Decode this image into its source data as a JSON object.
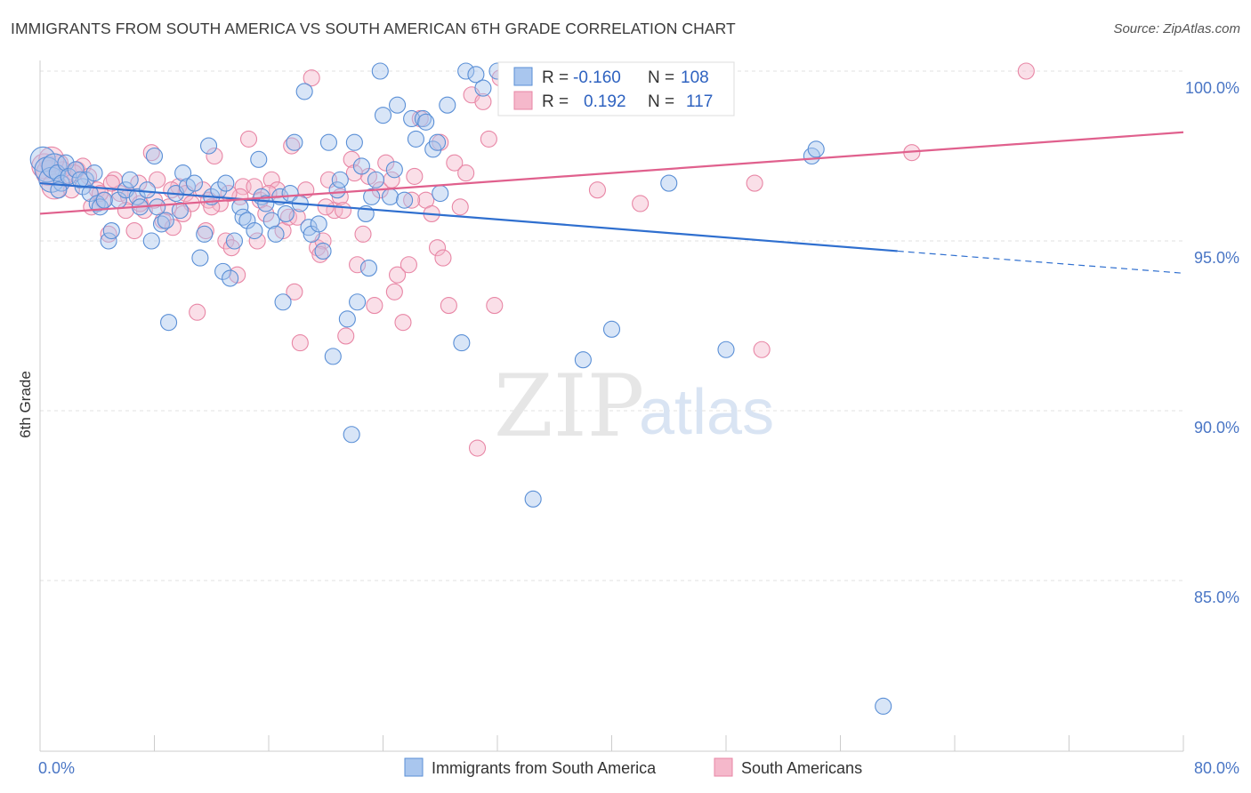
{
  "title": "IMMIGRANTS FROM SOUTH AMERICA VS SOUTH AMERICAN 6TH GRADE CORRELATION CHART",
  "source": "Source: ZipAtlas.com",
  "watermark": {
    "zip": "ZIP",
    "atlas": "atlas"
  },
  "colors": {
    "blue_fill": "#a9c6ee",
    "blue_stroke": "#5a8fd6",
    "blue_line": "#2f6fcf",
    "pink_fill": "#f5b8cb",
    "pink_stroke": "#e886a5",
    "pink_line": "#e0608d",
    "tick_label": "#4a76c5",
    "grid": "#e2e2e2"
  },
  "legend": {
    "rows": [
      {
        "r_label": "R =",
        "r_value": "-0.160",
        "n_label": "N =",
        "n_value": "108"
      },
      {
        "r_label": "R =",
        "r_value": "0.192",
        "n_label": "N =",
        "n_value": "117"
      }
    ]
  },
  "chart_data": {
    "type": "scatter",
    "title": "IMMIGRANTS FROM SOUTH AMERICA VS SOUTH AMERICAN 6TH GRADE CORRELATION CHART",
    "xlabel": "",
    "ylabel": "6th Grade",
    "xlim": [
      0,
      80
    ],
    "ylim": [
      80.5,
      100.8
    ],
    "x_tick_labels": [
      {
        "value": 0,
        "label": "0.0%"
      },
      {
        "value": 80,
        "label": "80.0%"
      }
    ],
    "y_tick_labels": [
      {
        "value": 100,
        "label": "100.0%"
      },
      {
        "value": 95,
        "label": "95.0%"
      },
      {
        "value": 90,
        "label": "90.0%"
      },
      {
        "value": 85,
        "label": "85.0%"
      }
    ],
    "legend_position": "top-center",
    "grid": true,
    "series": [
      {
        "name": "Immigrants from South America",
        "color": "#a9c6ee",
        "trend": {
          "x0": 0,
          "y0": 96.7,
          "x1": 60,
          "y1": 94.7,
          "dashed_to_x": 80,
          "dashed_to_y": 94.05
        },
        "points": [
          [
            0.2,
            97.4
          ],
          [
            0.5,
            97.1
          ],
          [
            0.8,
            96.8
          ],
          [
            1.0,
            97.2
          ],
          [
            1.2,
            97.0
          ],
          [
            1.5,
            96.7
          ],
          [
            1.8,
            97.3
          ],
          [
            2.0,
            96.9
          ],
          [
            2.5,
            97.1
          ],
          [
            3.0,
            96.6
          ],
          [
            3.2,
            96.8
          ],
          [
            3.5,
            96.4
          ],
          [
            4.0,
            96.1
          ],
          [
            4.2,
            96.0
          ],
          [
            4.8,
            95.0
          ],
          [
            5.0,
            95.3
          ],
          [
            5.5,
            96.2
          ],
          [
            6.0,
            96.5
          ],
          [
            6.3,
            96.8
          ],
          [
            6.8,
            96.3
          ],
          [
            7.0,
            96.0
          ],
          [
            7.5,
            96.5
          ],
          [
            7.8,
            95.0
          ],
          [
            8.0,
            97.5
          ],
          [
            8.5,
            95.5
          ],
          [
            8.8,
            95.6
          ],
          [
            9.0,
            92.6
          ],
          [
            9.5,
            96.4
          ],
          [
            9.8,
            95.9
          ],
          [
            10.0,
            97.0
          ],
          [
            10.3,
            96.6
          ],
          [
            10.8,
            96.7
          ],
          [
            11.2,
            94.5
          ],
          [
            11.5,
            95.2
          ],
          [
            11.8,
            97.8
          ],
          [
            12.0,
            96.3
          ],
          [
            12.5,
            96.5
          ],
          [
            12.8,
            94.1
          ],
          [
            13.0,
            96.7
          ],
          [
            13.3,
            93.9
          ],
          [
            13.6,
            95.0
          ],
          [
            14.0,
            96.0
          ],
          [
            14.2,
            95.7
          ],
          [
            14.5,
            95.6
          ],
          [
            15.0,
            95.3
          ],
          [
            15.3,
            97.4
          ],
          [
            15.5,
            96.3
          ],
          [
            15.8,
            96.1
          ],
          [
            16.2,
            95.6
          ],
          [
            16.5,
            95.2
          ],
          [
            16.8,
            96.3
          ],
          [
            17.0,
            93.2
          ],
          [
            17.5,
            96.4
          ],
          [
            17.8,
            97.9
          ],
          [
            18.2,
            96.1
          ],
          [
            18.5,
            99.4
          ],
          [
            18.8,
            95.4
          ],
          [
            19.0,
            95.2
          ],
          [
            19.5,
            95.5
          ],
          [
            19.8,
            94.7
          ],
          [
            20.2,
            97.9
          ],
          [
            20.5,
            91.6
          ],
          [
            20.8,
            96.5
          ],
          [
            21.0,
            96.8
          ],
          [
            21.5,
            92.7
          ],
          [
            21.8,
            89.3
          ],
          [
            22.0,
            97.9
          ],
          [
            22.2,
            93.2
          ],
          [
            22.5,
            97.2
          ],
          [
            22.8,
            95.8
          ],
          [
            23.0,
            94.2
          ],
          [
            23.2,
            96.3
          ],
          [
            23.5,
            96.8
          ],
          [
            23.8,
            100.0
          ],
          [
            24.0,
            98.7
          ],
          [
            24.5,
            96.3
          ],
          [
            24.8,
            97.1
          ],
          [
            25.0,
            99.0
          ],
          [
            25.5,
            96.2
          ],
          [
            26.0,
            98.6
          ],
          [
            26.3,
            98.0
          ],
          [
            26.8,
            98.6
          ],
          [
            27.0,
            98.5
          ],
          [
            27.5,
            97.7
          ],
          [
            27.8,
            97.9
          ],
          [
            28.5,
            99.0
          ],
          [
            29.5,
            92.0
          ],
          [
            29.8,
            100.0
          ],
          [
            30.5,
            99.9
          ],
          [
            32.0,
            100.0
          ],
          [
            34.5,
            87.4
          ],
          [
            35.0,
            100.0
          ],
          [
            38.0,
            91.5
          ],
          [
            40.0,
            92.4
          ],
          [
            44.0,
            96.7
          ],
          [
            48.0,
            91.8
          ],
          [
            54.0,
            97.5
          ],
          [
            54.3,
            97.7
          ],
          [
            59.0,
            81.3
          ],
          [
            36.0,
            99.0
          ],
          [
            31.0,
            99.5
          ],
          [
            28.0,
            96.4
          ],
          [
            17.2,
            95.8
          ],
          [
            8.2,
            96.0
          ],
          [
            4.5,
            96.2
          ],
          [
            2.8,
            96.8
          ],
          [
            1.3,
            96.5
          ],
          [
            3.8,
            97.0
          ]
        ]
      },
      {
        "name": "South Americans",
        "color": "#f5b8cb",
        "trend": {
          "x0": 0,
          "y0": 95.8,
          "x1": 80,
          "y1": 98.2
        },
        "points": [
          [
            0.3,
            97.2
          ],
          [
            0.6,
            97.0
          ],
          [
            1.0,
            96.6
          ],
          [
            1.4,
            97.3
          ],
          [
            1.8,
            96.9
          ],
          [
            2.2,
            96.5
          ],
          [
            2.6,
            97.1
          ],
          [
            3.0,
            97.2
          ],
          [
            3.4,
            96.9
          ],
          [
            4.0,
            96.5
          ],
          [
            4.4,
            96.2
          ],
          [
            4.8,
            95.2
          ],
          [
            5.2,
            96.8
          ],
          [
            5.6,
            96.4
          ],
          [
            6.2,
            96.3
          ],
          [
            6.6,
            95.3
          ],
          [
            6.9,
            96.7
          ],
          [
            7.3,
            95.9
          ],
          [
            7.8,
            97.6
          ],
          [
            8.2,
            96.8
          ],
          [
            8.6,
            95.6
          ],
          [
            9.0,
            96.0
          ],
          [
            9.3,
            95.4
          ],
          [
            9.7,
            96.6
          ],
          [
            10.2,
            96.4
          ],
          [
            10.6,
            96.1
          ],
          [
            11.0,
            92.9
          ],
          [
            11.4,
            96.5
          ],
          [
            11.8,
            96.2
          ],
          [
            12.2,
            97.5
          ],
          [
            12.6,
            96.1
          ],
          [
            13.0,
            95.0
          ],
          [
            13.4,
            94.8
          ],
          [
            13.8,
            94.0
          ],
          [
            14.2,
            96.6
          ],
          [
            14.6,
            98.0
          ],
          [
            15.0,
            96.6
          ],
          [
            15.4,
            96.2
          ],
          [
            15.8,
            95.8
          ],
          [
            16.2,
            96.8
          ],
          [
            16.6,
            96.5
          ],
          [
            17.0,
            95.3
          ],
          [
            17.4,
            95.7
          ],
          [
            17.8,
            93.5
          ],
          [
            18.2,
            92.0
          ],
          [
            18.6,
            96.5
          ],
          [
            19.0,
            99.8
          ],
          [
            19.4,
            94.8
          ],
          [
            19.8,
            95.0
          ],
          [
            20.2,
            96.8
          ],
          [
            20.6,
            95.9
          ],
          [
            21.0,
            96.3
          ],
          [
            21.4,
            92.2
          ],
          [
            21.8,
            97.4
          ],
          [
            22.2,
            94.3
          ],
          [
            22.6,
            95.2
          ],
          [
            23.0,
            96.9
          ],
          [
            23.4,
            93.1
          ],
          [
            23.8,
            96.5
          ],
          [
            24.2,
            97.3
          ],
          [
            24.6,
            96.8
          ],
          [
            25.0,
            94.0
          ],
          [
            25.4,
            92.6
          ],
          [
            25.8,
            94.3
          ],
          [
            26.2,
            96.9
          ],
          [
            26.6,
            98.6
          ],
          [
            27.0,
            96.2
          ],
          [
            27.4,
            95.8
          ],
          [
            27.8,
            94.8
          ],
          [
            28.2,
            94.5
          ],
          [
            28.6,
            93.1
          ],
          [
            29.0,
            97.3
          ],
          [
            29.4,
            96.0
          ],
          [
            29.8,
            97.0
          ],
          [
            30.2,
            99.3
          ],
          [
            30.6,
            88.9
          ],
          [
            31.0,
            99.1
          ],
          [
            31.4,
            98.0
          ],
          [
            31.8,
            93.1
          ],
          [
            32.2,
            99.8
          ],
          [
            33.0,
            100.0
          ],
          [
            33.6,
            99.9
          ],
          [
            34.0,
            99.6
          ],
          [
            36.0,
            99.8
          ],
          [
            38.5,
            99.7
          ],
          [
            39.0,
            96.5
          ],
          [
            42.0,
            96.1
          ],
          [
            50.0,
            96.7
          ],
          [
            50.5,
            91.8
          ],
          [
            61.0,
            97.6
          ],
          [
            69.0,
            100.0
          ],
          [
            20.0,
            96.0
          ],
          [
            18.0,
            95.7
          ],
          [
            16.0,
            96.4
          ],
          [
            14.0,
            96.3
          ],
          [
            12.0,
            96.0
          ],
          [
            10.0,
            95.8
          ],
          [
            8.0,
            96.2
          ],
          [
            6.0,
            95.9
          ],
          [
            5.0,
            96.7
          ],
          [
            3.6,
            96.0
          ],
          [
            2.4,
            97.0
          ],
          [
            1.6,
            97.1
          ],
          [
            0.8,
            97.4
          ],
          [
            26.0,
            96.2
          ],
          [
            28.0,
            97.9
          ],
          [
            22.0,
            97.0
          ],
          [
            24.8,
            93.5
          ],
          [
            17.6,
            97.8
          ],
          [
            19.6,
            94.6
          ],
          [
            13.2,
            96.4
          ],
          [
            11.6,
            95.3
          ],
          [
            9.2,
            96.5
          ],
          [
            7.0,
            96.1
          ],
          [
            4.2,
            96.4
          ],
          [
            15.2,
            95.0
          ],
          [
            21.2,
            95.9
          ]
        ]
      }
    ]
  }
}
